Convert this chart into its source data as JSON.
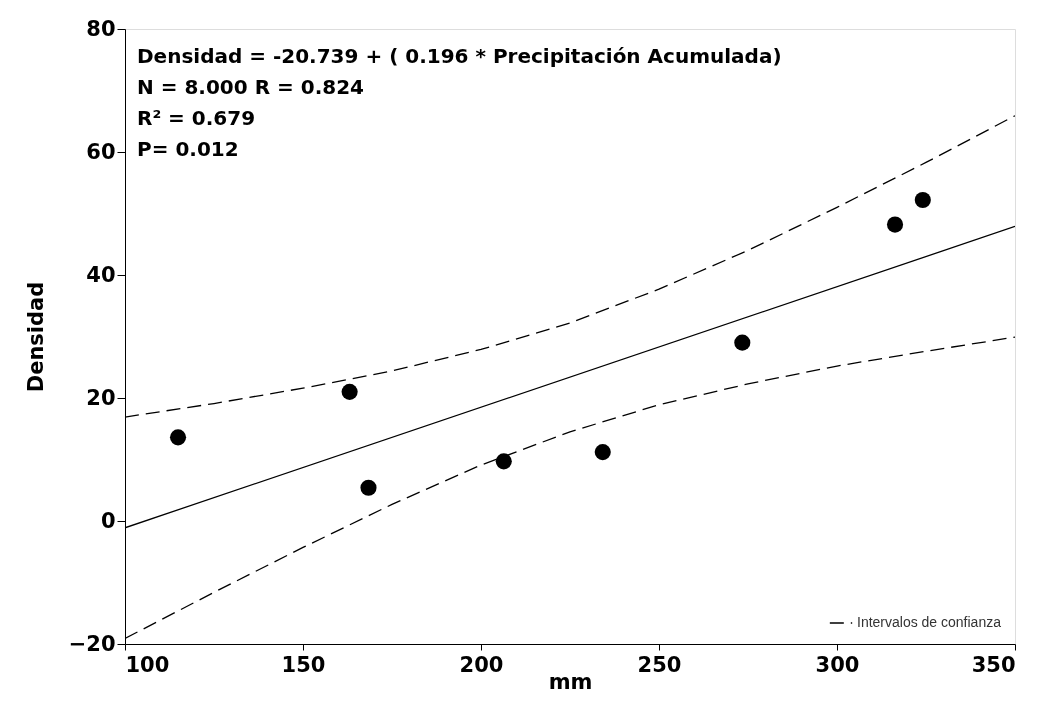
{
  "chart_data": {
    "type": "scatter",
    "xlabel": "mm",
    "ylabel": "Densidad",
    "xlim": [
      100,
      350
    ],
    "ylim": [
      -20,
      80
    ],
    "xticks": [
      100,
      150,
      200,
      250,
      300,
      350
    ],
    "yticks": [
      -20,
      0,
      20,
      40,
      60,
      80
    ],
    "grid": false,
    "legend": "bottom right",
    "annotations": [
      "Densidad = -20.739 + ( 0.196 * Precipitación Acumulada)",
      "N = 8.000 R =  0.824",
      "R² =  0.679",
      "P= 0.012"
    ],
    "series": [
      {
        "color": "#000000",
        "marker": "circle",
        "x": [
          114.9,
          163.1,
          168.4,
          206.4,
          234.2,
          273.4,
          316.3,
          324.1
        ],
        "values": [
          13.6,
          21.0,
          5.4,
          9.7,
          11.2,
          29.0,
          48.2,
          52.2
        ]
      },
      {
        "type": "line",
        "color": "#000000",
        "line_style": "solid",
        "x": [
          100,
          350
        ],
        "values": [
          -1.1,
          47.9
        ]
      },
      {
        "type": "line",
        "name": "Intervalos de confianza",
        "color": "#000000",
        "line_style": "dashed",
        "x": [
          100,
          125,
          150,
          175,
          200,
          225,
          250,
          275,
          300,
          325,
          350
        ],
        "values": [
          16.9,
          19.1,
          21.6,
          24.4,
          27.9,
          32.2,
          37.7,
          44.0,
          51.0,
          58.3,
          65.9
        ]
      },
      {
        "type": "line",
        "color": "#000000",
        "line_style": "dashed",
        "x": [
          100,
          125,
          150,
          175,
          200,
          225,
          250,
          275,
          300,
          325,
          350
        ],
        "values": [
          -19.1,
          -11.6,
          -4.3,
          2.7,
          9.1,
          14.5,
          18.9,
          22.3,
          25.2,
          27.6,
          29.9
        ]
      }
    ]
  }
}
